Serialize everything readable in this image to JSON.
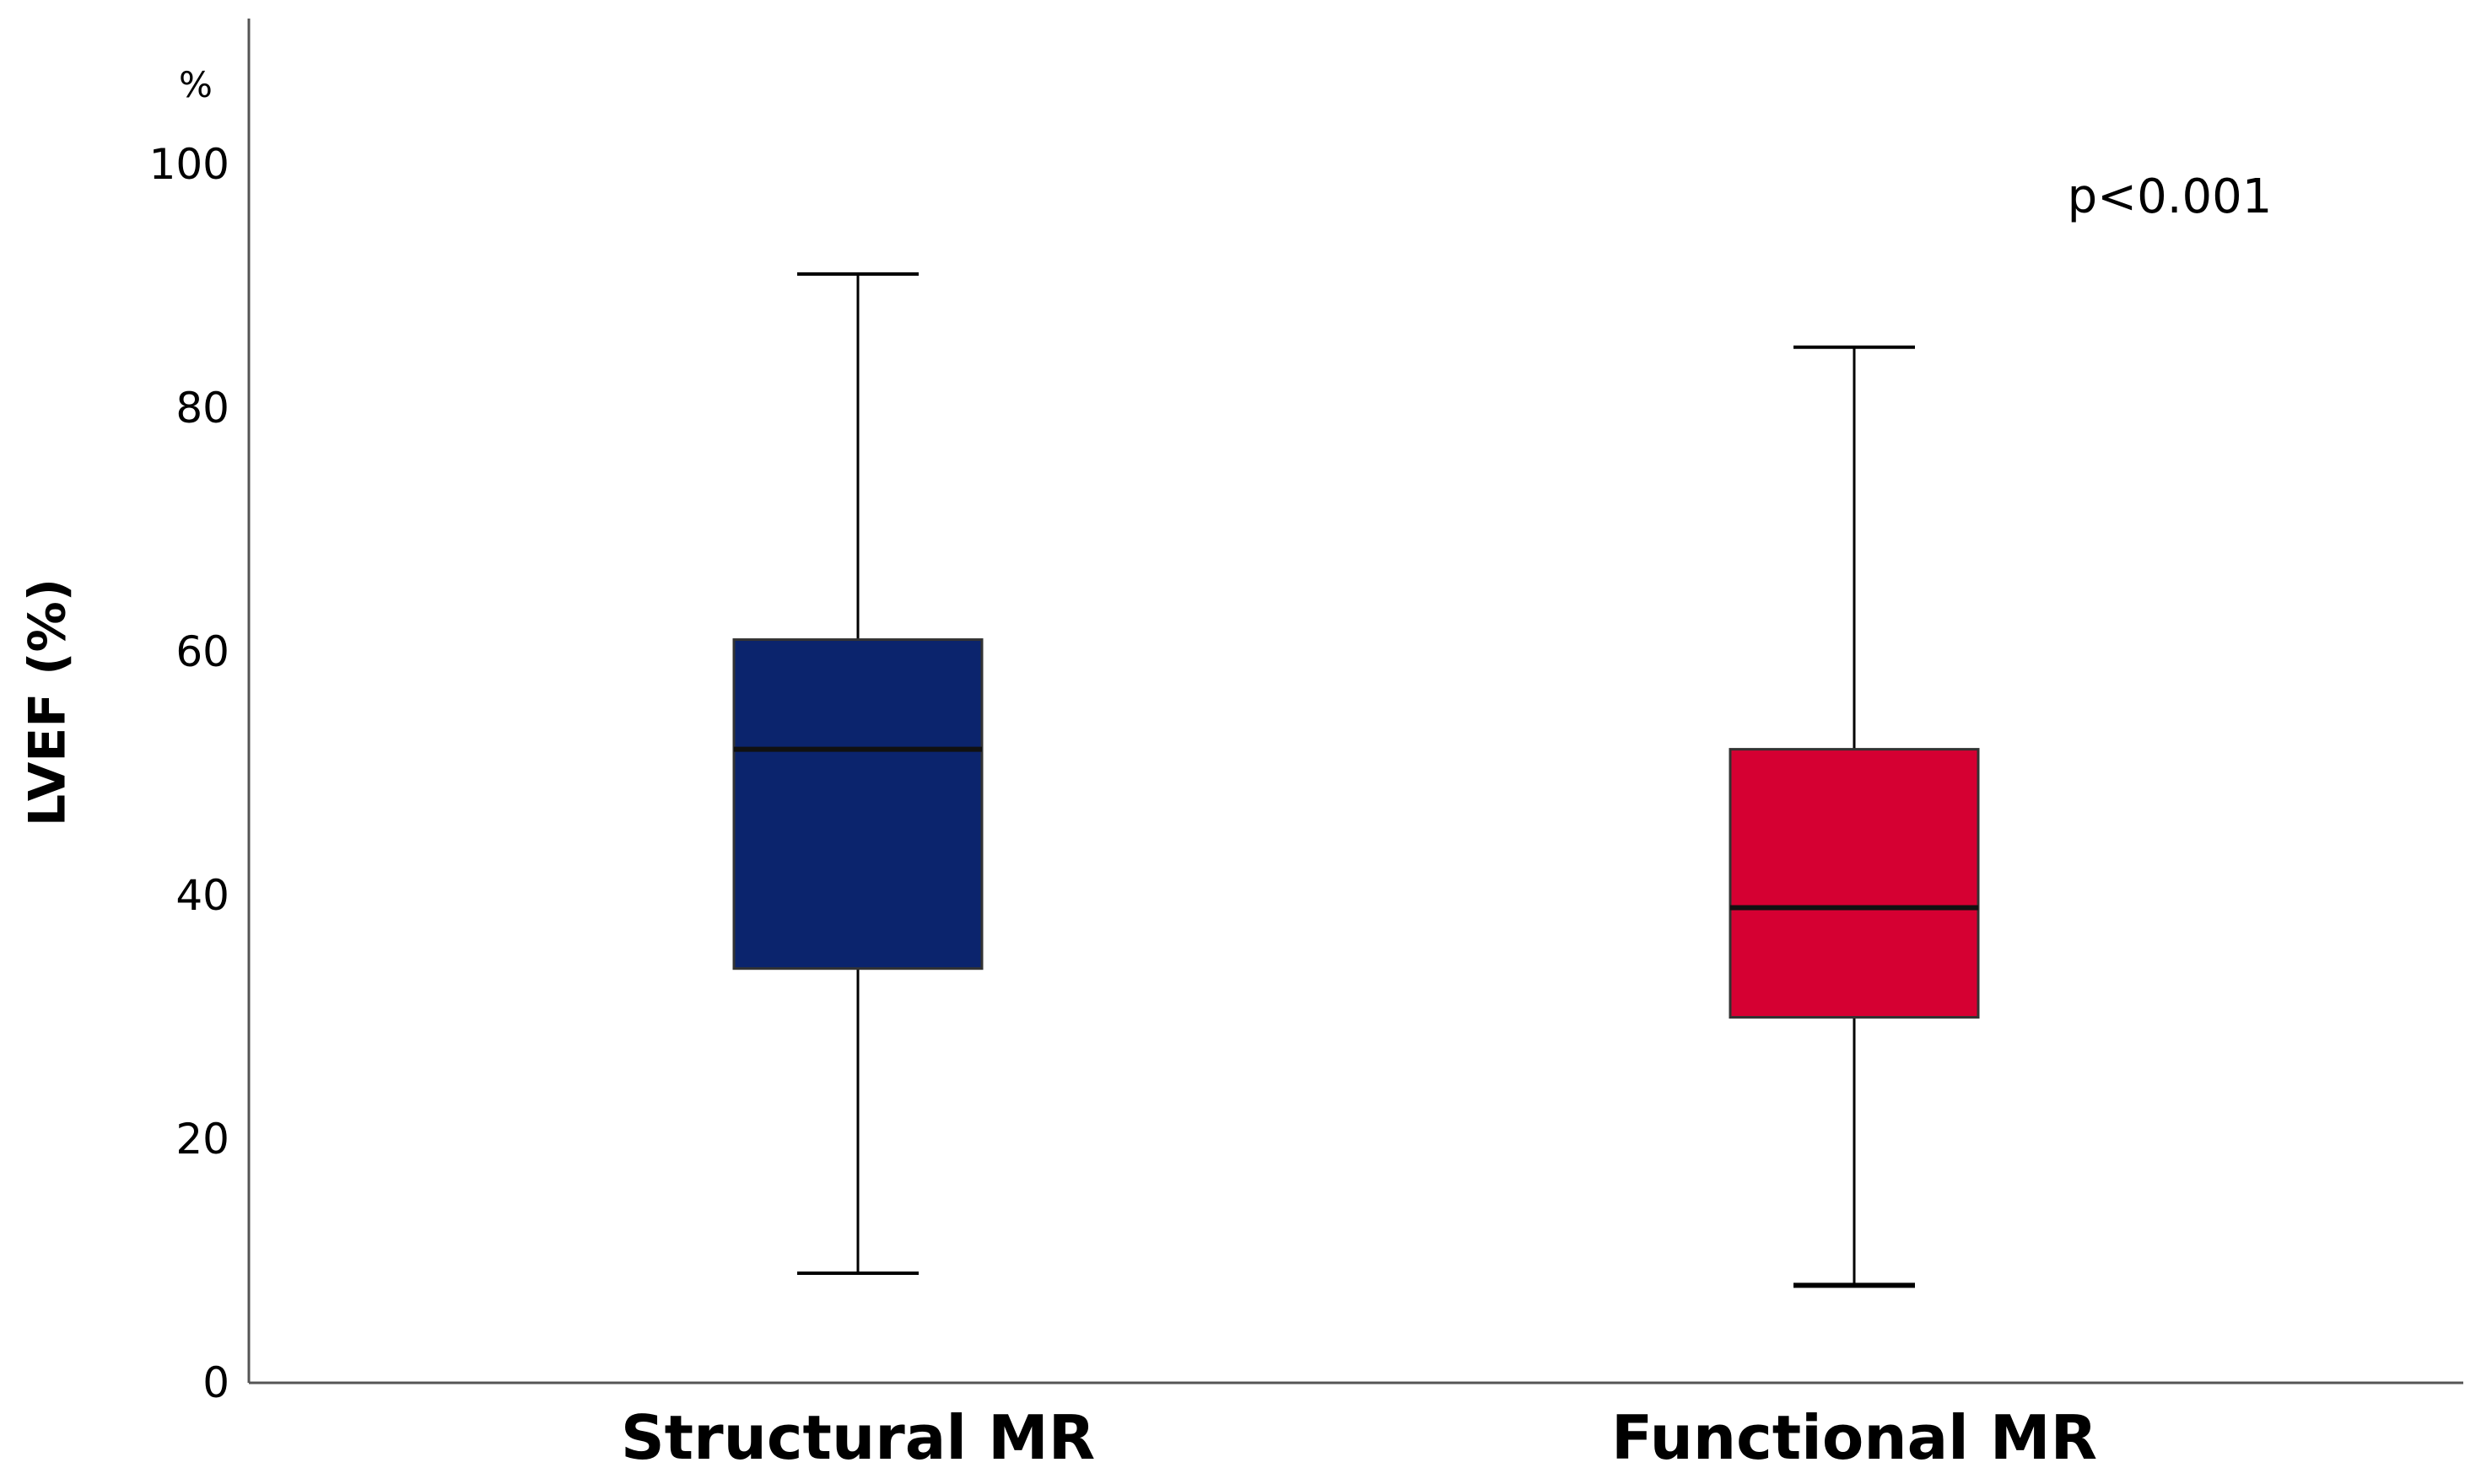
{
  "chart_data": {
    "type": "box",
    "ylabel": "LVEF (%)",
    "y_unit_label": "%",
    "ylim": [
      0,
      111
    ],
    "yticks": [
      0,
      20,
      40,
      60,
      80,
      100
    ],
    "grid": false,
    "annotation": "p<0.001",
    "categories": [
      "Structural MR",
      "Functional MR"
    ],
    "boxes": [
      {
        "category": "Structural MR",
        "whisker_low": 9,
        "q1": 34,
        "median": 52,
        "q3": 61,
        "whisker_high": 91,
        "color": "#0b246d"
      },
      {
        "category": "Functional MR",
        "whisker_low": 8,
        "q1": 30,
        "median": 39,
        "q3": 52,
        "whisker_high": 85,
        "color": "#d50032"
      }
    ]
  }
}
